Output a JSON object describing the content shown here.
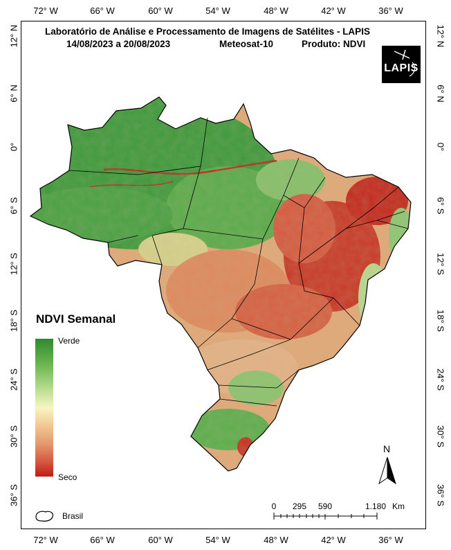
{
  "map": {
    "title": "Laboratório de Análise e Processamento de Imagens de Satélites - LAPIS",
    "date_range": "14/08/2023  a  20/08/2023",
    "satellite": "Meteosat-10",
    "product": "Produto: NDVI",
    "logo_text": "LAPIS"
  },
  "graticule": {
    "longitudes": [
      "72° W",
      "66° W",
      "60° W",
      "54° W",
      "48° W",
      "42° W",
      "36° W"
    ],
    "latitudes": [
      "12° N",
      "6° N",
      "0°",
      "6° S",
      "12° S",
      "18° S",
      "24° S",
      "30° S",
      "36° S"
    ]
  },
  "legend": {
    "title": "NDVI Semanal",
    "top_label": "Verde",
    "bottom_label": "Seco",
    "boundary_label": "Brasil",
    "colors": [
      "#2e8b2e",
      "#6ab34f",
      "#b6dc8e",
      "#f6f6c2",
      "#f2cc98",
      "#e49a6e",
      "#d5543e",
      "#c01a14"
    ]
  },
  "north_arrow": {
    "label": "N"
  },
  "scale_bar": {
    "ticks": [
      "0",
      "295",
      "590",
      "1.180"
    ],
    "unit": "Km"
  }
}
